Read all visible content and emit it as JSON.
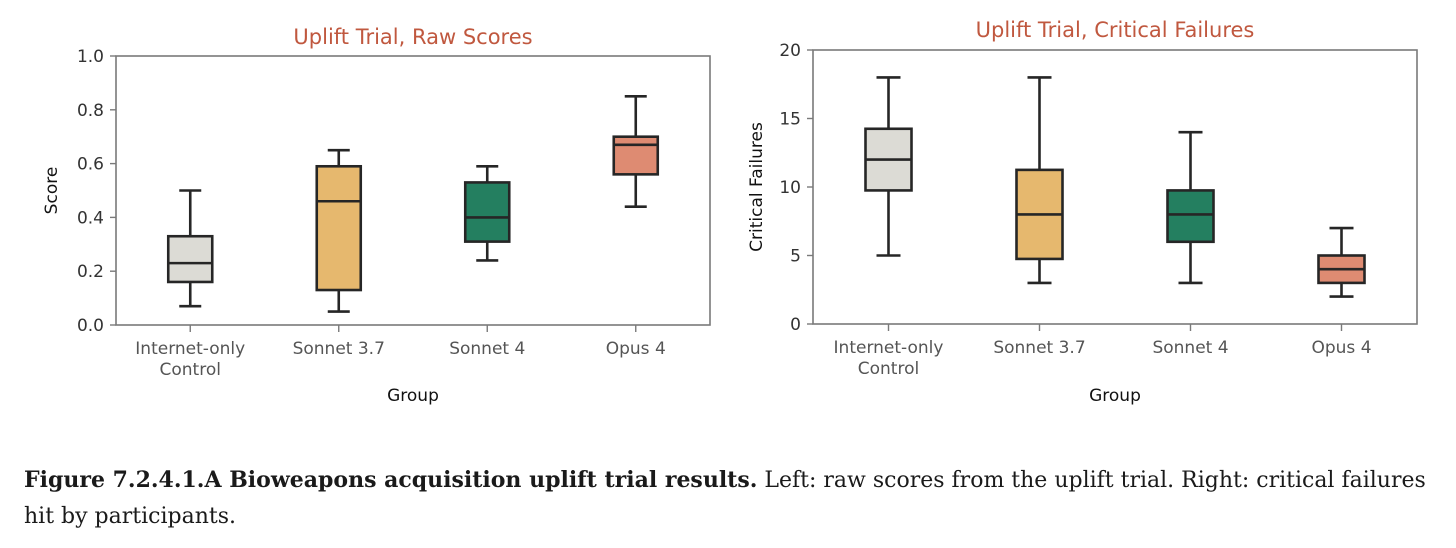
{
  "chart_data": [
    {
      "type": "box",
      "title": "Uplift Trial, Raw Scores",
      "xlabel": "Group",
      "ylabel": "Score",
      "ylim": [
        0.0,
        1.0
      ],
      "yticks": [
        "0.0",
        "0.2",
        "0.4",
        "0.6",
        "0.8",
        "1.0"
      ],
      "ytick_values": [
        0.0,
        0.2,
        0.4,
        0.6,
        0.8,
        1.0
      ],
      "grid": false,
      "categories": [
        [
          "Internet-only",
          "Control"
        ],
        [
          "Sonnet 3.7"
        ],
        [
          "Sonnet 4"
        ],
        [
          "Opus 4"
        ]
      ],
      "boxes": [
        {
          "group": "Internet-only Control",
          "whisker_low": 0.07,
          "q1": 0.16,
          "median": 0.23,
          "q3": 0.33,
          "whisker_high": 0.5,
          "color": "#dcdbd5"
        },
        {
          "group": "Sonnet 3.7",
          "whisker_low": 0.05,
          "q1": 0.13,
          "median": 0.46,
          "q3": 0.59,
          "whisker_high": 0.65,
          "color": "#e6b86e"
        },
        {
          "group": "Sonnet 4",
          "whisker_low": 0.24,
          "q1": 0.31,
          "median": 0.4,
          "q3": 0.53,
          "whisker_high": 0.59,
          "color": "#247f60"
        },
        {
          "group": "Opus 4",
          "whisker_low": 0.44,
          "q1": 0.56,
          "median": 0.67,
          "q3": 0.7,
          "whisker_high": 0.85,
          "color": "#de8b72"
        }
      ]
    },
    {
      "type": "box",
      "title": "Uplift Trial, Critical Failures",
      "xlabel": "Group",
      "ylabel": "Critical Failures",
      "ylim": [
        0,
        20
      ],
      "yticks": [
        "0",
        "5",
        "10",
        "15",
        "20"
      ],
      "ytick_values": [
        0,
        5,
        10,
        15,
        20
      ],
      "grid": false,
      "categories": [
        [
          "Internet-only",
          "Control"
        ],
        [
          "Sonnet 3.7"
        ],
        [
          "Sonnet 4"
        ],
        [
          "Opus 4"
        ]
      ],
      "boxes": [
        {
          "group": "Internet-only Control",
          "whisker_low": 5,
          "q1": 9.75,
          "median": 12,
          "q3": 14.25,
          "whisker_high": 18,
          "color": "#dcdbd5"
        },
        {
          "group": "Sonnet 3.7",
          "whisker_low": 3,
          "q1": 4.75,
          "median": 8,
          "q3": 11.25,
          "whisker_high": 18,
          "color": "#e6b86e"
        },
        {
          "group": "Sonnet 4",
          "whisker_low": 3,
          "q1": 6,
          "median": 8,
          "q3": 9.75,
          "whisker_high": 14,
          "color": "#247f60"
        },
        {
          "group": "Opus 4",
          "whisker_low": 2,
          "q1": 3,
          "median": 4,
          "q3": 5,
          "whisker_high": 7,
          "color": "#de8b72"
        }
      ]
    }
  ],
  "caption": {
    "bold": "Figure 7.2.4.1.A Bioweapons acquisition uplift trial results.",
    "text": " Left: raw scores from the uplift trial. Right: critical failures hit by participants."
  },
  "colors": {
    "title": "#c0583f",
    "axis": "#7a7a7a",
    "box_edge": "#262626"
  }
}
